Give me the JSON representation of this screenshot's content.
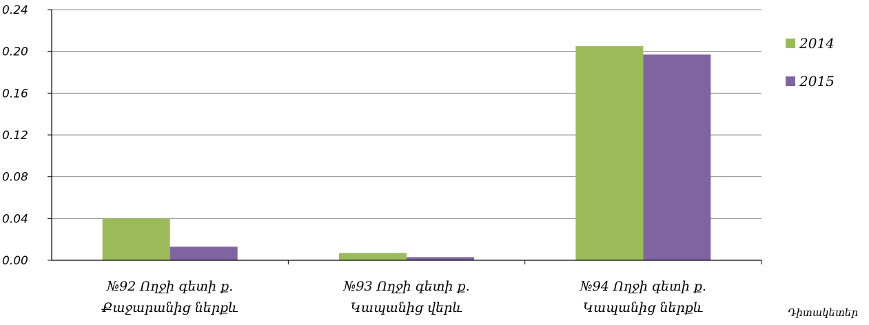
{
  "chart_data": {
    "type": "bar",
    "categories": [
      [
        "№92 Ողջի գետի ք.",
        "Քաջարանից ներքև"
      ],
      [
        "№93 Ողջի գետի ք.",
        "Կապանից վերև"
      ],
      [
        "№94 Ողջի գետի ք.",
        "Կապանից ներքև"
      ]
    ],
    "series": [
      {
        "name": "2014",
        "color": "#9bbb59",
        "values": [
          0.04,
          0.007,
          0.205
        ]
      },
      {
        "name": "2015",
        "color": "#8064a2",
        "values": [
          0.013,
          0.003,
          0.197
        ]
      }
    ],
    "ylim": [
      0,
      0.24
    ],
    "yticks": [
      "0.00",
      "0.04",
      "0.08",
      "0.12",
      "0.16",
      "0.20",
      "0.24"
    ],
    "xlabel": "Դիտակետեր",
    "grid": true,
    "legend_position": "right"
  }
}
